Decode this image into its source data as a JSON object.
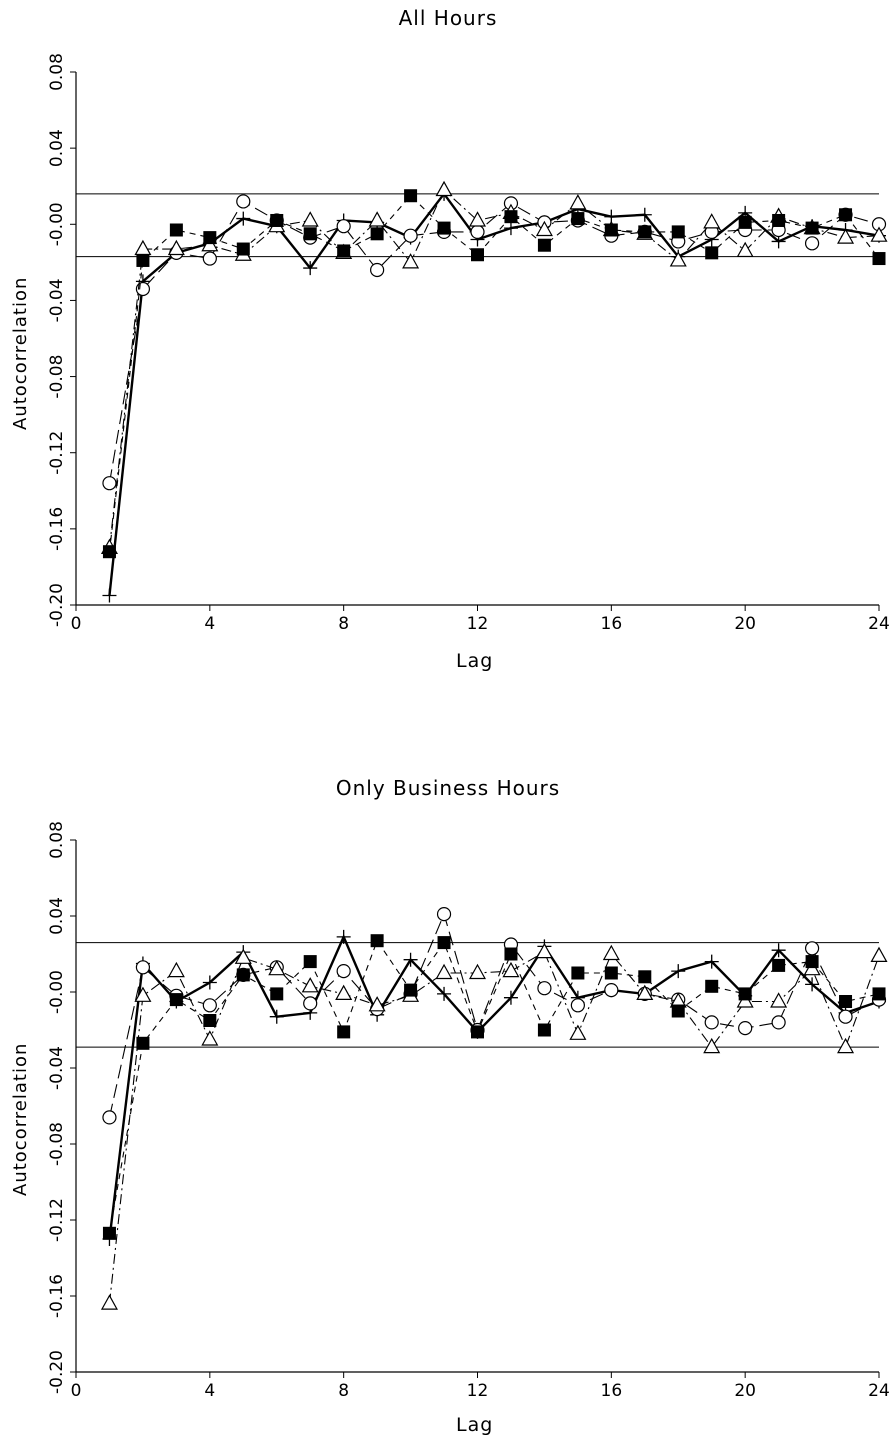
{
  "chart_data": [
    {
      "type": "line",
      "title": "All Hours",
      "xlabel": "Lag",
      "ylabel": "Autocorrelation",
      "xlim": [
        0,
        24
      ],
      "ylim": [
        -0.2,
        0.08
      ],
      "x_ticks": [
        0,
        4,
        8,
        12,
        16,
        20,
        24
      ],
      "x_tick_labels": [
        "0",
        "4",
        "8",
        "12",
        "16",
        "20",
        "24"
      ],
      "y_ticks": [
        -0.2,
        -0.16,
        -0.12,
        -0.08,
        -0.04,
        0.0,
        0.04,
        0.08
      ],
      "y_tick_labels": [
        "-0.20",
        "-0.16",
        "-0.12",
        "-0.08",
        "-0.04",
        "-0.00",
        "0.04",
        "0.08"
      ],
      "reference_lines": [
        0.016,
        -0.017
      ],
      "grid": false,
      "legend": "none",
      "x": [
        1,
        2,
        3,
        4,
        5,
        6,
        7,
        8,
        9,
        10,
        11,
        12,
        13,
        14,
        15,
        16,
        17,
        18,
        19,
        20,
        21,
        22,
        23,
        24
      ],
      "series": [
        {
          "marker": "plus",
          "line": "solid-bold",
          "values": [
            -0.195,
            -0.03,
            -0.015,
            -0.01,
            0.003,
            -0.001,
            -0.023,
            0.002,
            0.001,
            -0.007,
            0.016,
            -0.008,
            -0.002,
            0.001,
            0.008,
            0.004,
            0.005,
            -0.017,
            -0.008,
            0.006,
            -0.009,
            -0.001,
            -0.003,
            -0.006
          ]
        },
        {
          "marker": "circle",
          "line": "long-dash",
          "values": [
            -0.136,
            -0.034,
            -0.015,
            -0.018,
            0.012,
            0.002,
            -0.007,
            -0.001,
            -0.024,
            -0.006,
            -0.004,
            -0.004,
            0.011,
            0.001,
            0.002,
            -0.006,
            -0.004,
            -0.009,
            -0.004,
            -0.003,
            -0.003,
            -0.01,
            0.005,
            0.0
          ]
        },
        {
          "marker": "triangle",
          "line": "dash-dot",
          "values": [
            -0.17,
            -0.013,
            -0.013,
            -0.011,
            -0.016,
            -0.001,
            0.002,
            -0.015,
            0.002,
            -0.02,
            0.018,
            0.002,
            0.006,
            -0.003,
            0.011,
            -0.003,
            -0.005,
            -0.019,
            0.001,
            -0.014,
            0.004,
            -0.002,
            -0.007,
            -0.006
          ]
        },
        {
          "marker": "square",
          "line": "dashed",
          "values": [
            -0.172,
            -0.019,
            -0.003,
            -0.007,
            -0.013,
            0.002,
            -0.005,
            -0.014,
            -0.005,
            0.015,
            -0.002,
            -0.016,
            0.004,
            -0.011,
            0.003,
            -0.003,
            -0.004,
            -0.004,
            -0.015,
            0.001,
            0.002,
            -0.002,
            0.005,
            -0.018
          ]
        }
      ]
    },
    {
      "type": "line",
      "title": "Only Business Hours",
      "xlabel": "Lag",
      "ylabel": "Autocorrelation",
      "xlim": [
        0,
        24
      ],
      "ylim": [
        -0.2,
        0.08
      ],
      "x_ticks": [
        0,
        4,
        8,
        12,
        16,
        20,
        24
      ],
      "x_tick_labels": [
        "0",
        "4",
        "8",
        "12",
        "16",
        "20",
        "24"
      ],
      "y_ticks": [
        -0.2,
        -0.16,
        -0.12,
        -0.08,
        -0.04,
        0.0,
        0.04,
        0.08
      ],
      "y_tick_labels": [
        "-0.20",
        "-0.16",
        "-0.12",
        "-0.08",
        "-0.04",
        "-0.00",
        "0.04",
        "0.08"
      ],
      "reference_lines": [
        0.026,
        -0.029
      ],
      "grid": false,
      "legend": "none",
      "x": [
        1,
        2,
        3,
        4,
        5,
        6,
        7,
        8,
        9,
        10,
        11,
        12,
        13,
        14,
        15,
        16,
        17,
        18,
        19,
        20,
        21,
        22,
        23,
        24
      ],
      "series": [
        {
          "marker": "plus",
          "line": "solid-bold",
          "values": [
            -0.13,
            0.015,
            -0.005,
            0.005,
            0.021,
            -0.013,
            -0.011,
            0.029,
            -0.012,
            0.017,
            -0.001,
            -0.021,
            -0.003,
            0.024,
            -0.003,
            0.001,
            -0.001,
            0.011,
            0.016,
            -0.002,
            0.022,
            0.004,
            -0.011,
            -0.005
          ]
        },
        {
          "marker": "circle",
          "line": "long-dash",
          "values": [
            -0.066,
            0.013,
            -0.002,
            -0.007,
            0.009,
            0.013,
            -0.006,
            0.011,
            -0.009,
            -0.001,
            0.041,
            -0.02,
            0.025,
            0.002,
            -0.007,
            0.001,
            -0.001,
            -0.004,
            -0.016,
            -0.019,
            -0.016,
            0.023,
            -0.013,
            -0.004
          ]
        },
        {
          "marker": "triangle",
          "line": "dash-dot",
          "values": [
            -0.164,
            -0.002,
            0.011,
            -0.025,
            0.018,
            0.012,
            0.003,
            -0.001,
            -0.007,
            -0.002,
            0.01,
            0.01,
            0.011,
            0.021,
            -0.022,
            0.02,
            -0.001,
            -0.005,
            -0.029,
            -0.005,
            -0.005,
            0.012,
            -0.029,
            0.019
          ]
        },
        {
          "marker": "square",
          "line": "dashed",
          "values": [
            -0.127,
            -0.027,
            -0.004,
            -0.015,
            0.009,
            -0.001,
            0.016,
            -0.021,
            0.027,
            0.001,
            0.026,
            -0.021,
            0.02,
            -0.02,
            0.01,
            0.01,
            0.008,
            -0.01,
            0.003,
            -0.001,
            0.014,
            0.016,
            -0.005,
            -0.001
          ]
        }
      ]
    }
  ]
}
